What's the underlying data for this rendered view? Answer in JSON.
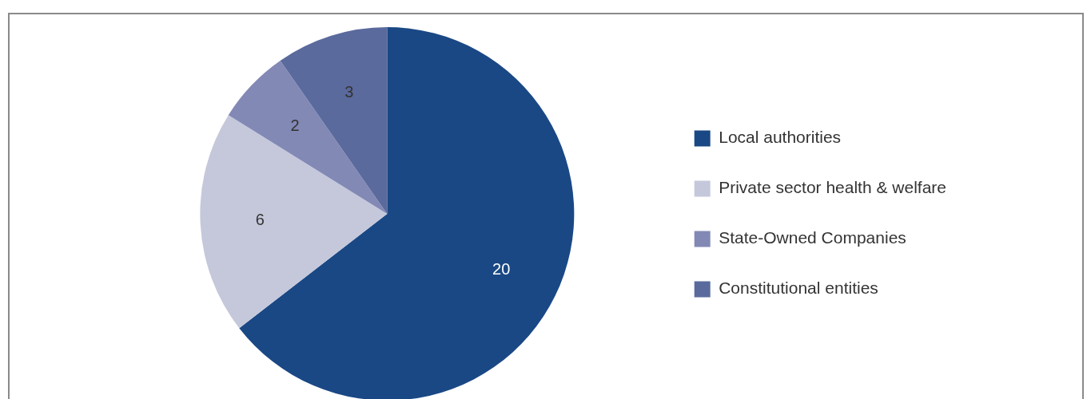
{
  "chart_data": {
    "type": "pie",
    "categories": [
      "Local authorities",
      "Private sector health & welfare",
      "State-Owned Companies",
      "Constitutional entities"
    ],
    "values": [
      20,
      6,
      2,
      3
    ],
    "colors": [
      "#1a4885",
      "#c5c8db",
      "#8289b5",
      "#5a6a9d"
    ],
    "data_labels": true,
    "legend": "right"
  }
}
